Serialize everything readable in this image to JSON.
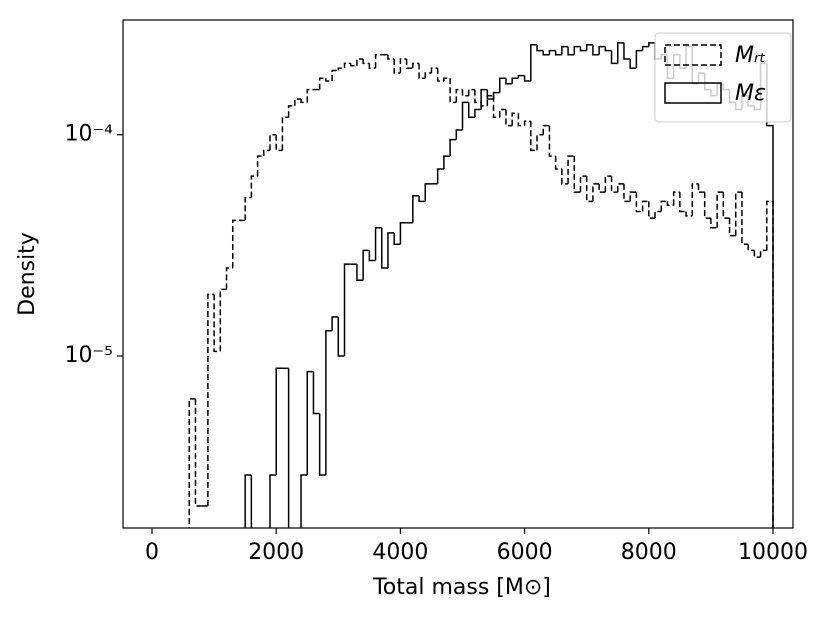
{
  "chart_data": {
    "type": "histogram",
    "xlabel": "Total mass [M⊙]",
    "ylabel": "Density",
    "xlim": [
      -467,
      10322
    ],
    "ylim": [
      1.67e-06,
      0.00033
    ],
    "log_y": true,
    "xticks": [
      0,
      2000,
      4000,
      6000,
      8000,
      10000
    ],
    "yticks": [
      {
        "value": 1e-05,
        "label": "10⁻⁵"
      },
      {
        "value": 0.0001,
        "label": "10⁻⁴"
      }
    ],
    "legend": "upper right",
    "bins": [
      600,
      700,
      800,
      900,
      1000,
      1100,
      1200,
      1300,
      1400,
      1500,
      1600,
      1700,
      1800,
      1900,
      2000,
      2100,
      2200,
      2300,
      2400,
      2500,
      2600,
      2700,
      2800,
      2900,
      3000,
      3100,
      3200,
      3300,
      3400,
      3500,
      3600,
      3700,
      3800,
      3900,
      4000,
      4100,
      4200,
      4300,
      4400,
      4500,
      4600,
      4700,
      4800,
      4900,
      5000,
      5100,
      5200,
      5300,
      5400,
      5500,
      5600,
      5700,
      5800,
      5900,
      6000,
      6100,
      6200,
      6300,
      6400,
      6500,
      6600,
      6700,
      6800,
      6900,
      7000,
      7100,
      7200,
      7300,
      7400,
      7500,
      7600,
      7700,
      7800,
      7900,
      8000,
      8100,
      8200,
      8300,
      8400,
      8500,
      8600,
      8700,
      8800,
      8900,
      9000,
      9100,
      9200,
      9300,
      9400,
      9500,
      9600,
      9700,
      9800,
      9900,
      10000
    ],
    "series": [
      {
        "name": "Mᵣₜ",
        "color": "#000000",
        "linestyle": "dashed",
        "values": [
          6.4e-06,
          2.1e-06,
          2.1e-06,
          1.9e-05,
          1.05e-05,
          2e-05,
          2.5e-05,
          4.1e-05,
          4.1e-05,
          5.2e-05,
          6.5e-05,
          8e-05,
          8.5e-05,
          0.0001,
          8.5e-05,
          0.00012,
          0.000135,
          0.000145,
          0.00014,
          0.00016,
          0.00016,
          0.00018,
          0.000175,
          0.000195,
          0.0002,
          0.00021,
          0.000205,
          0.00022,
          0.00021,
          0.0002,
          0.00023,
          0.00023,
          0.00022,
          0.00019,
          0.00022,
          0.0002,
          0.00021,
          0.00018,
          0.00019,
          0.0002,
          0.000175,
          0.00018,
          0.00014,
          0.00016,
          0.00015,
          0.00016,
          0.00014,
          0.000135,
          0.00015,
          0.00012,
          0.00013,
          0.00011,
          0.000125,
          0.00011,
          0.000115,
          8.5e-05,
          0.0001,
          0.00011,
          8e-05,
          7e-05,
          6e-05,
          8e-05,
          5.5e-05,
          6.5e-05,
          5e-05,
          6e-05,
          5.5e-05,
          6.5e-05,
          5.5e-05,
          6e-05,
          5e-05,
          5.5e-05,
          4.5e-05,
          5e-05,
          4.2e-05,
          4.5e-05,
          5e-05,
          4.8e-05,
          5.5e-05,
          4.5e-05,
          4.3e-05,
          6e-05,
          5.5e-05,
          4.2e-05,
          3.8e-05,
          5.5e-05,
          4.2e-05,
          3.5e-05,
          5.5e-05,
          3.2e-05,
          3e-05,
          2.8e-05,
          3e-05,
          5e-05
        ]
      },
      {
        "name": "Mε",
        "color": "#000000",
        "linestyle": "solid",
        "values": [
          0,
          0,
          0,
          0,
          0,
          0,
          0,
          0,
          0,
          2.9e-06,
          0,
          0,
          0,
          2.9e-06,
          8.8e-06,
          8.8e-06,
          0,
          0,
          2.9e-06,
          8.5e-06,
          5.5e-06,
          2.9e-06,
          1.3e-05,
          1.5e-05,
          1e-05,
          2.6e-05,
          2.6e-05,
          2.2e-05,
          3e-05,
          2.7e-05,
          3.8e-05,
          2.5e-05,
          3.6e-05,
          3.2e-05,
          4e-05,
          4e-05,
          5.3e-05,
          5e-05,
          6e-05,
          6e-05,
          7e-05,
          8e-05,
          9.5e-05,
          0.000105,
          0.00014,
          0.00012,
          0.00013,
          0.00016,
          0.000145,
          0.000155,
          0.00018,
          0.00017,
          0.00018,
          0.000185,
          0.000175,
          0.000255,
          0.00024,
          0.00023,
          0.00024,
          0.00023,
          0.00025,
          0.00023,
          0.00025,
          0.00024,
          0.000255,
          0.00023,
          0.00025,
          0.00024,
          0.00021,
          0.00026,
          0.00022,
          0.0002,
          0.00024,
          0.00025,
          0.00026,
          0.00022,
          0.00023,
          0.00018,
          0.00023,
          0.0002,
          0.00025,
          0.00017,
          0.00019,
          0.00016,
          0.00015,
          0.00017,
          0.00016,
          0.00014,
          0.00013,
          0.00015,
          0.000135,
          0.00013,
          0.00021,
          0.00011
        ]
      }
    ]
  }
}
